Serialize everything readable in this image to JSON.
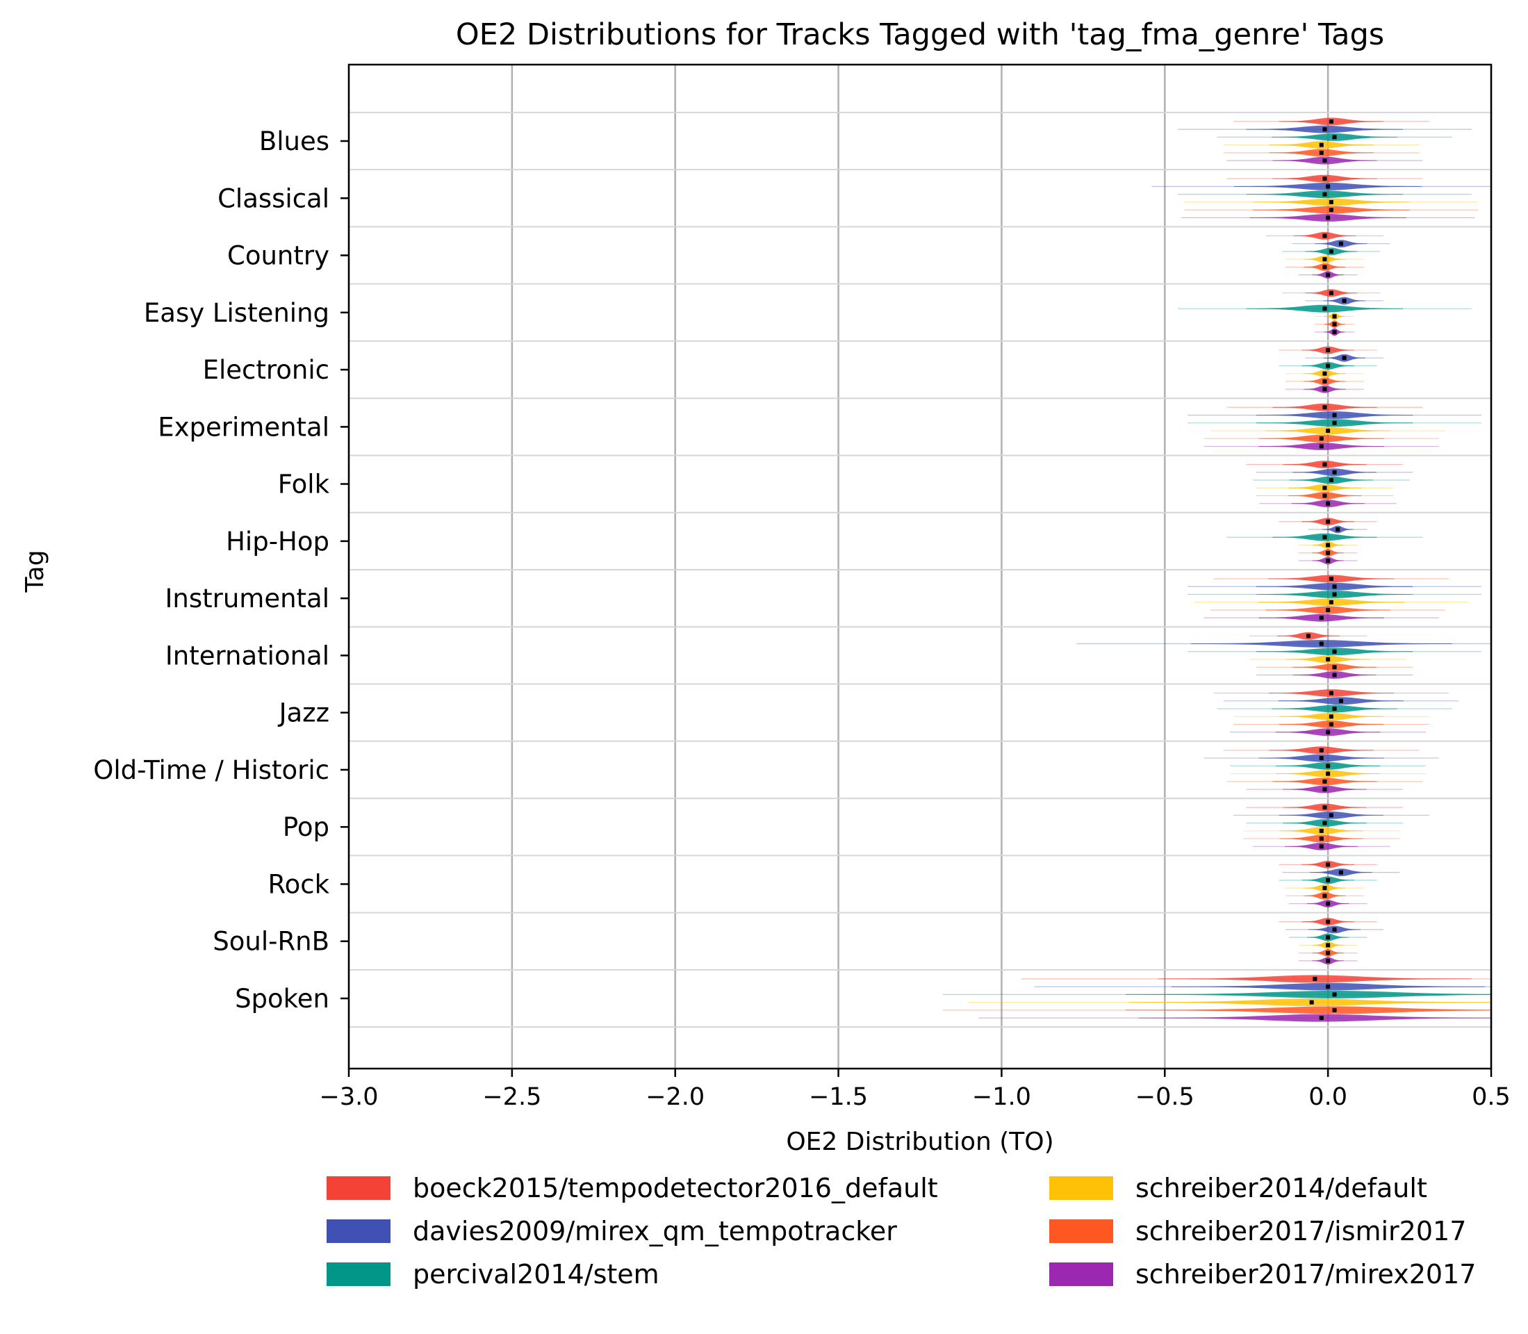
{
  "chart_data": {
    "type": "violin",
    "title": "OE2 Distributions for Tracks Tagged with 'tag_fma_genre' Tags",
    "xlabel": "OE2 Distribution (TO)",
    "ylabel": "Tag",
    "xlim": [
      -3.0,
      0.5
    ],
    "xticks": [
      -3.0,
      -2.5,
      -2.0,
      -1.5,
      -1.0,
      -0.5,
      0.0,
      0.5
    ],
    "xtick_labels": [
      "−3.0",
      "−2.5",
      "−2.0",
      "−1.5",
      "−1.0",
      "−0.5",
      "0.0",
      "0.5"
    ],
    "grid": "x",
    "legend_position": "bottom",
    "categories": [
      "Blues",
      "Classical",
      "Country",
      "Easy Listening",
      "Electronic",
      "Experimental",
      "Folk",
      "Hip-Hop",
      "Instrumental",
      "International",
      "Jazz",
      "Old-Time / Historic",
      "Pop",
      "Rock",
      "Soul-RnB",
      "Spoken"
    ],
    "series": [
      {
        "name": "boeck2015/tempodetector2016_default",
        "color": "#f44336",
        "medians": [
          0.01,
          -0.01,
          -0.01,
          0.01,
          0.0,
          -0.01,
          -0.01,
          0.0,
          0.01,
          -0.06,
          0.01,
          -0.02,
          -0.01,
          0.0,
          0.0,
          -0.04
        ],
        "spread": [
          0.1,
          0.1,
          0.06,
          0.05,
          0.05,
          0.1,
          0.08,
          0.05,
          0.12,
          0.06,
          0.12,
          0.1,
          0.08,
          0.05,
          0.05,
          0.3
        ]
      },
      {
        "name": "davies2009/mirex_qm_tempotracker",
        "color": "#3f51b5",
        "medians": [
          -0.01,
          0.0,
          0.04,
          0.05,
          0.05,
          0.02,
          0.02,
          0.03,
          0.02,
          -0.02,
          0.04,
          -0.02,
          0.01,
          0.04,
          0.02,
          0.0
        ],
        "spread": [
          0.15,
          0.18,
          0.05,
          0.04,
          0.04,
          0.15,
          0.08,
          0.03,
          0.15,
          0.25,
          0.12,
          0.12,
          0.1,
          0.06,
          0.05,
          0.3
        ]
      },
      {
        "name": "percival2014/stem",
        "color": "#009688",
        "medians": [
          0.02,
          -0.01,
          0.01,
          -0.01,
          0.0,
          0.02,
          0.01,
          -0.01,
          0.02,
          0.02,
          0.02,
          0.0,
          -0.01,
          0.0,
          0.0,
          0.02
        ],
        "spread": [
          0.12,
          0.15,
          0.05,
          0.15,
          0.05,
          0.15,
          0.08,
          0.1,
          0.15,
          0.15,
          0.12,
          0.1,
          0.08,
          0.05,
          0.04,
          0.4
        ]
      },
      {
        "name": "schreiber2014/default",
        "color": "#ffc107",
        "medians": [
          -0.02,
          0.01,
          -0.01,
          0.02,
          -0.01,
          0.0,
          -0.01,
          0.0,
          0.01,
          0.0,
          0.01,
          0.0,
          -0.02,
          -0.01,
          0.0,
          -0.05
        ],
        "spread": [
          0.1,
          0.15,
          0.04,
          0.02,
          0.04,
          0.12,
          0.07,
          0.03,
          0.14,
          0.08,
          0.1,
          0.1,
          0.08,
          0.04,
          0.03,
          0.35
        ]
      },
      {
        "name": "schreiber2017/ismir2017",
        "color": "#ff5722",
        "medians": [
          -0.02,
          0.01,
          -0.01,
          0.02,
          -0.01,
          -0.02,
          -0.01,
          0.0,
          0.0,
          0.02,
          0.01,
          -0.01,
          -0.02,
          -0.01,
          0.0,
          0.02
        ],
        "spread": [
          0.1,
          0.15,
          0.04,
          0.02,
          0.04,
          0.12,
          0.07,
          0.03,
          0.12,
          0.08,
          0.1,
          0.1,
          0.08,
          0.04,
          0.03,
          0.4
        ]
      },
      {
        "name": "schreiber2017/mirex2017",
        "color": "#9c27b0",
        "medians": [
          -0.01,
          0.0,
          0.0,
          0.02,
          -0.01,
          -0.02,
          0.0,
          0.0,
          -0.02,
          0.02,
          0.0,
          -0.01,
          -0.02,
          0.0,
          0.0,
          -0.02
        ],
        "spread": [
          0.1,
          0.15,
          0.03,
          0.02,
          0.04,
          0.12,
          0.07,
          0.03,
          0.12,
          0.08,
          0.1,
          0.08,
          0.07,
          0.04,
          0.03,
          0.35
        ]
      }
    ]
  }
}
